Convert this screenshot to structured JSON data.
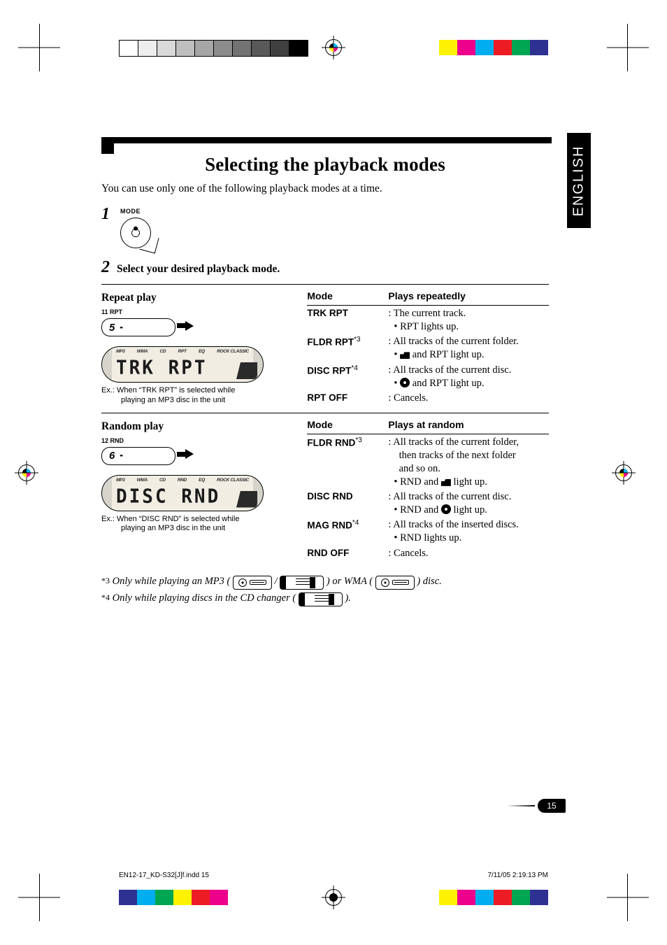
{
  "side_tab": "ENGLISH",
  "title": "Selecting the playback modes",
  "lead": "You can use only one of the following playback modes at a time.",
  "steps": {
    "n1": "1",
    "n2": "2",
    "mode_label": "MODE",
    "step2_text": "Select your desired playback mode."
  },
  "repeat": {
    "heading": "Repeat play",
    "preset_caption": "11  RPT",
    "preset_label": "5",
    "lcd_top": {
      "a": "MP3",
      "b": "WMA",
      "c": "CD",
      "d": "RPT",
      "e": "EQ",
      "f": "ROCK CLASSIC"
    },
    "lcd_text": "TRK  RPT",
    "lcd_caption_l1": "Ex.:  When “TRK RPT” is selected while",
    "lcd_caption_l2": "playing an MP3 disc in the unit",
    "table": {
      "h1": "Mode",
      "h2": "Plays repeatedly",
      "rows": [
        {
          "mode": "TRK RPT",
          "sup": "",
          "desc": ": The current track.",
          "sub": "RPT lights up."
        },
        {
          "mode": "FLDR RPT",
          "sup": "*3",
          "desc": ": All tracks of the current folder.",
          "sub_icon": "folder",
          "sub": " and RPT light up."
        },
        {
          "mode": "DISC RPT",
          "sup": "*4",
          "desc": ": All tracks of the current disc.",
          "sub_icon": "disc",
          "sub": " and RPT light up."
        },
        {
          "mode": "RPT OFF",
          "sup": "",
          "desc": ": Cancels.",
          "sub": ""
        }
      ]
    }
  },
  "random": {
    "heading": "Random play",
    "preset_caption": "12  RND",
    "preset_label": "6",
    "lcd_top": {
      "a": "MP3",
      "b": "WMA",
      "c": "CD",
      "d": "RND",
      "e": "EQ",
      "f": "ROCK CLASSIC"
    },
    "lcd_text": "DISC RND",
    "lcd_caption_l1": "Ex.:  When “DISC RND” is selected while",
    "lcd_caption_l2": "playing an MP3 disc in the unit",
    "table": {
      "h1": "Mode",
      "h2": "Plays at random",
      "rows": [
        {
          "mode": "FLDR RND",
          "sup": "*3",
          "desc": ": All tracks of the current folder,",
          "extra1": "then tracks of the next folder",
          "extra2": "and so on.",
          "sub_prefix": "RND and ",
          "sub_icon": "folder",
          "sub": " light up."
        },
        {
          "mode": "DISC RND",
          "sup": "",
          "desc": ": All tracks of the current disc.",
          "sub_prefix": "RND and ",
          "sub_icon": "disc",
          "sub": " light up."
        },
        {
          "mode": "MAG RND",
          "sup": "*4",
          "desc": ": All tracks of the inserted discs.",
          "sub_prefix": "",
          "sub": "RND lights up."
        },
        {
          "mode": "RND OFF",
          "sup": "",
          "desc": ": Cancels.",
          "sub": ""
        }
      ]
    }
  },
  "footnotes": {
    "f3_mark": "*3",
    "f3a": "Only while playing an MP3 ( ",
    "f3b": " ) or WMA ( ",
    "f3c": " ) disc.",
    "f4_mark": "*4",
    "f4a": "Only while playing discs in the CD changer ( ",
    "f4b": " )."
  },
  "page_number": "15",
  "imprint_left": "EN12-17_KD-S32[J]f.indd   15",
  "imprint_right": "7/11/05   2:19:13 PM",
  "color_bars": {
    "gray": [
      "#ffffff",
      "#ededed",
      "#d9d9d9",
      "#bfbfbf",
      "#a6a6a6",
      "#8c8c8c",
      "#737373",
      "#595959",
      "#404040",
      "#000000"
    ],
    "cmyk_l": [
      "#2e3192",
      "#00aeef",
      "#00a651",
      "#fff200",
      "#ed1c24",
      "#ec008c"
    ],
    "cmyk_r": [
      "#fff200",
      "#ec008c",
      "#00aeef",
      "#ed1c24",
      "#00a651",
      "#2e3192"
    ]
  }
}
